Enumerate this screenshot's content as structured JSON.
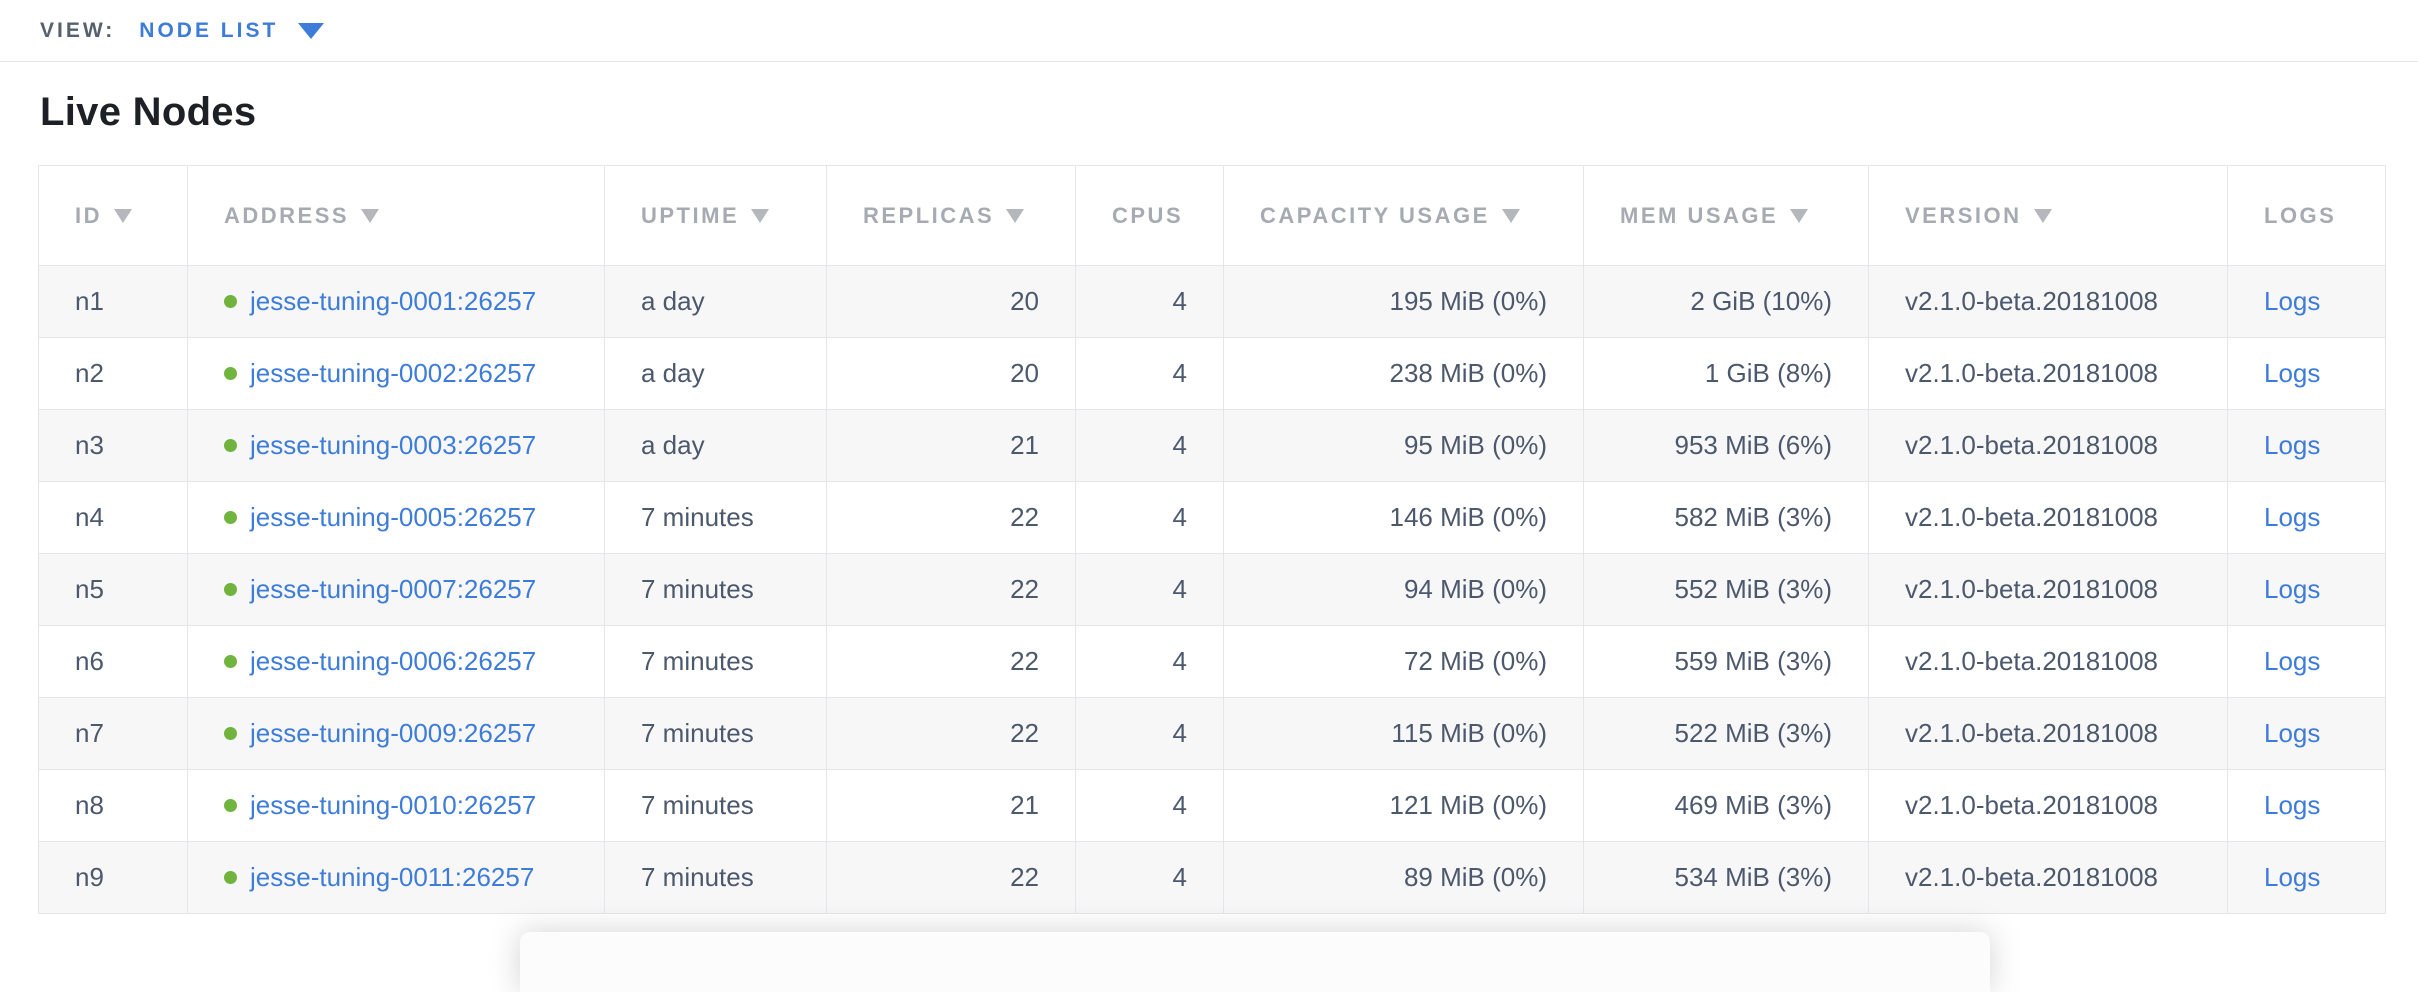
{
  "view_bar": {
    "label": "VIEW:",
    "selected": "NODE LIST"
  },
  "page": {
    "title": "Live Nodes"
  },
  "colors": {
    "accent_blue": "#3e7cd9",
    "status_live_green": "#70b33f",
    "header_text": "#a6abb2",
    "body_text": "#4c586c",
    "row_alt_bg": "#f7f7f8",
    "table_border": "#e5e6e9"
  },
  "table": {
    "columns": [
      {
        "key": "id",
        "label": "ID",
        "sortable": true,
        "align": "left"
      },
      {
        "key": "address",
        "label": "ADDRESS",
        "sortable": true,
        "align": "left"
      },
      {
        "key": "uptime",
        "label": "UPTIME",
        "sortable": true,
        "align": "left"
      },
      {
        "key": "replicas",
        "label": "REPLICAS",
        "sortable": true,
        "align": "right"
      },
      {
        "key": "cpus",
        "label": "CPUS",
        "sortable": false,
        "align": "right"
      },
      {
        "key": "capacity",
        "label": "CAPACITY USAGE",
        "sortable": true,
        "align": "right"
      },
      {
        "key": "mem",
        "label": "MEM USAGE",
        "sortable": true,
        "align": "right"
      },
      {
        "key": "version",
        "label": "VERSION",
        "sortable": true,
        "align": "left"
      },
      {
        "key": "logs",
        "label": "LOGS",
        "sortable": false,
        "align": "left"
      }
    ],
    "rows": [
      {
        "id": "n1",
        "status": "live",
        "address": "jesse-tuning-0001:26257",
        "uptime": "a day",
        "replicas": "20",
        "cpus": "4",
        "capacity": "195 MiB (0%)",
        "mem": "2 GiB (10%)",
        "version": "v2.1.0-beta.20181008",
        "logs": "Logs"
      },
      {
        "id": "n2",
        "status": "live",
        "address": "jesse-tuning-0002:26257",
        "uptime": "a day",
        "replicas": "20",
        "cpus": "4",
        "capacity": "238 MiB (0%)",
        "mem": "1 GiB (8%)",
        "version": "v2.1.0-beta.20181008",
        "logs": "Logs"
      },
      {
        "id": "n3",
        "status": "live",
        "address": "jesse-tuning-0003:26257",
        "uptime": "a day",
        "replicas": "21",
        "cpus": "4",
        "capacity": "95 MiB (0%)",
        "mem": "953 MiB (6%)",
        "version": "v2.1.0-beta.20181008",
        "logs": "Logs"
      },
      {
        "id": "n4",
        "status": "live",
        "address": "jesse-tuning-0005:26257",
        "uptime": "7 minutes",
        "replicas": "22",
        "cpus": "4",
        "capacity": "146 MiB (0%)",
        "mem": "582 MiB (3%)",
        "version": "v2.1.0-beta.20181008",
        "logs": "Logs"
      },
      {
        "id": "n5",
        "status": "live",
        "address": "jesse-tuning-0007:26257",
        "uptime": "7 minutes",
        "replicas": "22",
        "cpus": "4",
        "capacity": "94 MiB (0%)",
        "mem": "552 MiB (3%)",
        "version": "v2.1.0-beta.20181008",
        "logs": "Logs"
      },
      {
        "id": "n6",
        "status": "live",
        "address": "jesse-tuning-0006:26257",
        "uptime": "7 minutes",
        "replicas": "22",
        "cpus": "4",
        "capacity": "72 MiB (0%)",
        "mem": "559 MiB (3%)",
        "version": "v2.1.0-beta.20181008",
        "logs": "Logs"
      },
      {
        "id": "n7",
        "status": "live",
        "address": "jesse-tuning-0009:26257",
        "uptime": "7 minutes",
        "replicas": "22",
        "cpus": "4",
        "capacity": "115 MiB (0%)",
        "mem": "522 MiB (3%)",
        "version": "v2.1.0-beta.20181008",
        "logs": "Logs"
      },
      {
        "id": "n8",
        "status": "live",
        "address": "jesse-tuning-0010:26257",
        "uptime": "7 minutes",
        "replicas": "21",
        "cpus": "4",
        "capacity": "121 MiB (0%)",
        "mem": "469 MiB (3%)",
        "version": "v2.1.0-beta.20181008",
        "logs": "Logs"
      },
      {
        "id": "n9",
        "status": "live",
        "address": "jesse-tuning-0011:26257",
        "uptime": "7 minutes",
        "replicas": "22",
        "cpus": "4",
        "capacity": "89 MiB (0%)",
        "mem": "534 MiB (3%)",
        "version": "v2.1.0-beta.20181008",
        "logs": "Logs"
      }
    ]
  }
}
